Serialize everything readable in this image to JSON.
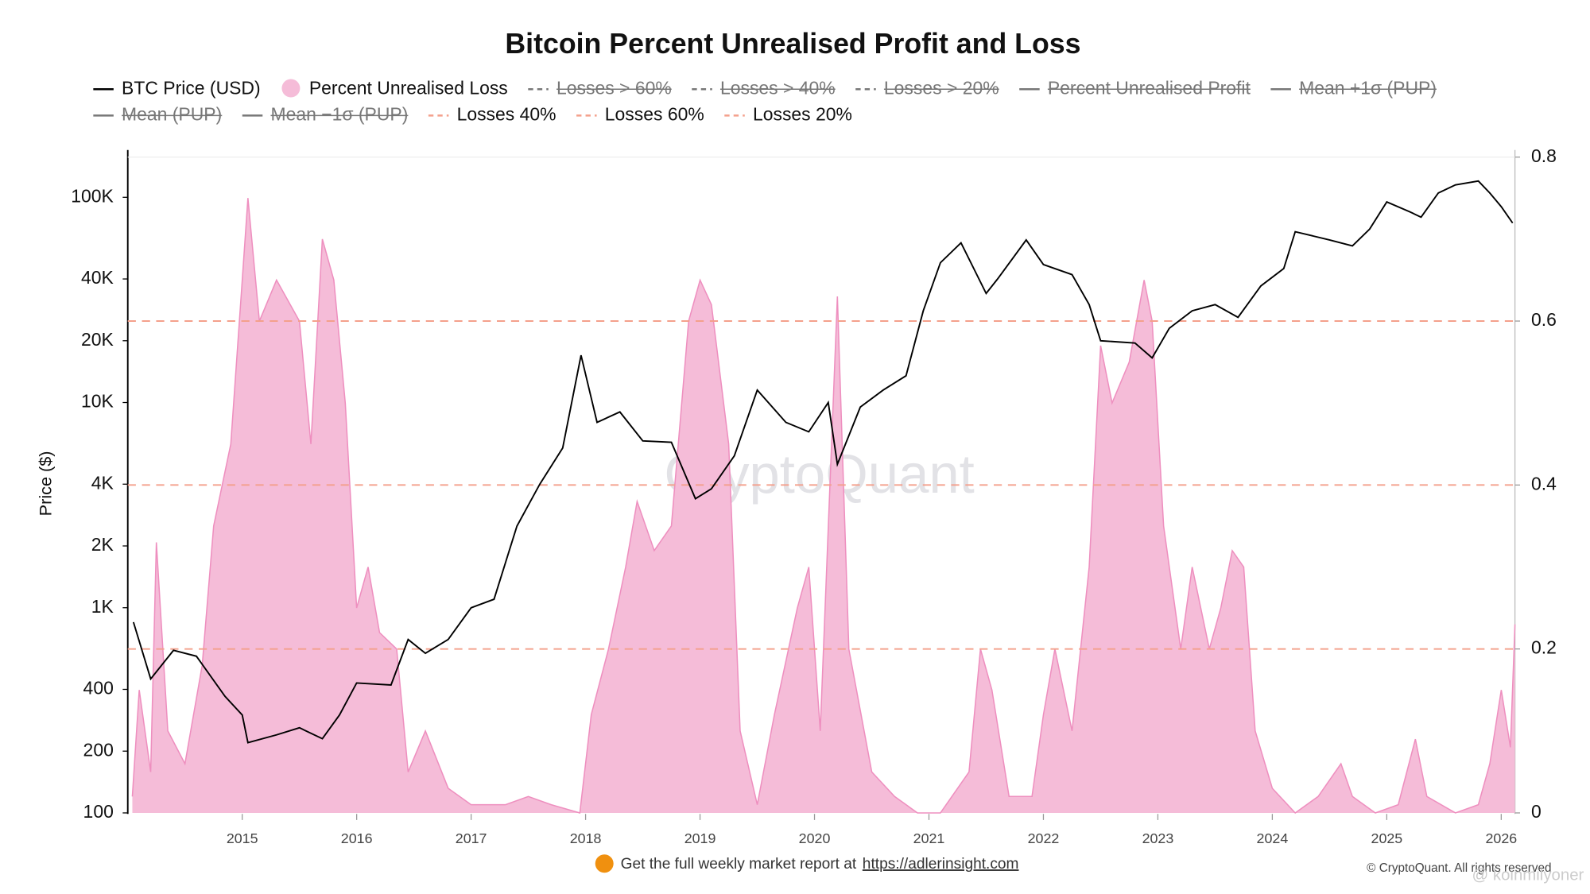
{
  "chart_data": {
    "type": "line",
    "title": "Bitcoin Percent Unrealised Profit and Loss",
    "y_label": "Price ($)",
    "watermark": "CryptoQuant",
    "footer_text": "Get the full weekly market report at",
    "footer_link": "https://adlerinsight.com",
    "copyright": "© CryptoQuant. All rights reserved",
    "credit": "@ koinmilyoner",
    "log_y": true,
    "grid": false,
    "xlim": [
      2014.0,
      2026.12
    ],
    "xticks": [
      2015,
      2016,
      2017,
      2018,
      2019,
      2020,
      2021,
      2022,
      2023,
      2024,
      2025,
      2026
    ],
    "ylim": [
      100,
      157000
    ],
    "yticks": [
      100,
      200,
      400,
      {
        "value": 1000,
        "label": "1K"
      },
      {
        "value": 2000,
        "label": "2K"
      },
      {
        "value": 4000,
        "label": "4K"
      },
      {
        "value": 10000,
        "label": "10K"
      },
      {
        "value": 20000,
        "label": "20K"
      },
      {
        "value": 40000,
        "label": "40K"
      },
      {
        "value": 100000,
        "label": "100K"
      }
    ],
    "y2lim": [
      0,
      0.8
    ],
    "y2ticks": [
      0,
      0.2,
      0.4,
      0.6,
      0.8
    ],
    "series": [
      {
        "name": "BTC Price (USD)",
        "style": "line",
        "color": "#000000",
        "x": [
          2014.05,
          2014.2,
          2014.4,
          2014.6,
          2014.85,
          2015.0,
          2015.05,
          2015.3,
          2015.5,
          2015.7,
          2015.85,
          2016.0,
          2016.3,
          2016.45,
          2016.6,
          2016.8,
          2017.0,
          2017.2,
          2017.4,
          2017.6,
          2017.8,
          2017.96,
          2018.1,
          2018.3,
          2018.5,
          2018.75,
          2018.96,
          2019.1,
          2019.3,
          2019.5,
          2019.75,
          2019.95,
          2020.12,
          2020.2,
          2020.4,
          2020.6,
          2020.8,
          2020.95,
          2021.1,
          2021.28,
          2021.5,
          2021.6,
          2021.85,
          2022.0,
          2022.25,
          2022.4,
          2022.5,
          2022.8,
          2022.95,
          2023.1,
          2023.3,
          2023.5,
          2023.7,
          2023.9,
          2024.1,
          2024.2,
          2024.5,
          2024.7,
          2024.85,
          2025.0,
          2025.2,
          2025.3,
          2025.45,
          2025.6,
          2025.8,
          2025.9,
          2026.0,
          2026.1
        ],
        "values": [
          850,
          450,
          620,
          580,
          370,
          300,
          220,
          240,
          260,
          230,
          300,
          430,
          420,
          700,
          600,
          700,
          1000,
          1100,
          2500,
          4000,
          6000,
          17000,
          8000,
          9000,
          6500,
          6400,
          3400,
          3800,
          5500,
          11500,
          8000,
          7200,
          10000,
          5000,
          9500,
          11500,
          13500,
          28000,
          48000,
          60000,
          34000,
          40000,
          62000,
          47000,
          42000,
          30000,
          20000,
          19500,
          16500,
          23000,
          28000,
          30000,
          26000,
          37000,
          45000,
          68000,
          62000,
          58000,
          70000,
          95000,
          85000,
          80000,
          105000,
          115000,
          120000,
          105000,
          90000,
          75000
        ]
      },
      {
        "name": "Percent Unrealised Loss",
        "style": "area",
        "axis": "y2",
        "color": "#ee8fbf",
        "fill": "#f5bcd8",
        "x": [
          2014.04,
          2014.1,
          2014.2,
          2014.25,
          2014.35,
          2014.5,
          2014.65,
          2014.75,
          2014.9,
          2015.0,
          2015.05,
          2015.15,
          2015.3,
          2015.5,
          2015.6,
          2015.7,
          2015.8,
          2015.9,
          2016.0,
          2016.1,
          2016.2,
          2016.35,
          2016.45,
          2016.6,
          2016.8,
          2017.0,
          2017.3,
          2017.5,
          2017.7,
          2017.95,
          2018.05,
          2018.2,
          2018.35,
          2018.45,
          2018.6,
          2018.75,
          2018.9,
          2019.0,
          2019.1,
          2019.25,
          2019.35,
          2019.5,
          2019.65,
          2019.85,
          2019.95,
          2020.05,
          2020.2,
          2020.3,
          2020.5,
          2020.7,
          2020.9,
          2021.1,
          2021.35,
          2021.45,
          2021.55,
          2021.7,
          2021.9,
          2022.0,
          2022.1,
          2022.25,
          2022.4,
          2022.5,
          2022.6,
          2022.75,
          2022.88,
          2022.95,
          2023.05,
          2023.2,
          2023.3,
          2023.45,
          2023.55,
          2023.65,
          2023.75,
          2023.85,
          2024.0,
          2024.2,
          2024.4,
          2024.6,
          2024.7,
          2024.9,
          2025.1,
          2025.25,
          2025.35,
          2025.6,
          2025.8,
          2025.9,
          2026.0,
          2026.08,
          2026.12
        ],
        "values": [
          0.02,
          0.15,
          0.05,
          0.33,
          0.1,
          0.06,
          0.18,
          0.35,
          0.45,
          0.65,
          0.75,
          0.6,
          0.65,
          0.6,
          0.45,
          0.7,
          0.65,
          0.5,
          0.25,
          0.3,
          0.22,
          0.2,
          0.05,
          0.1,
          0.03,
          0.01,
          0.01,
          0.02,
          0.01,
          0.0,
          0.12,
          0.2,
          0.3,
          0.38,
          0.32,
          0.35,
          0.6,
          0.65,
          0.62,
          0.45,
          0.1,
          0.01,
          0.12,
          0.25,
          0.3,
          0.1,
          0.63,
          0.2,
          0.05,
          0.02,
          0.0,
          0.0,
          0.05,
          0.2,
          0.15,
          0.02,
          0.02,
          0.12,
          0.2,
          0.1,
          0.3,
          0.57,
          0.5,
          0.55,
          0.65,
          0.6,
          0.35,
          0.2,
          0.3,
          0.2,
          0.25,
          0.32,
          0.3,
          0.1,
          0.03,
          0.0,
          0.02,
          0.06,
          0.02,
          0.0,
          0.01,
          0.09,
          0.02,
          0.0,
          0.01,
          0.06,
          0.15,
          0.08,
          0.23
        ]
      },
      {
        "name": "Losses > 60%",
        "style": "dashed",
        "color": "#666666",
        "hidden": true
      },
      {
        "name": "Losses > 40%",
        "style": "dashed",
        "color": "#666666",
        "hidden": true
      },
      {
        "name": "Losses > 20%",
        "style": "dashed",
        "color": "#666666",
        "hidden": true
      },
      {
        "name": "Percent Unrealised Profit",
        "style": "line",
        "color": "#666666",
        "hidden": true
      },
      {
        "name": "Mean +1σ (PUP)",
        "style": "line",
        "color": "#666666",
        "hidden": true
      },
      {
        "name": "Mean (PUP)",
        "style": "line",
        "color": "#666666",
        "hidden": true
      },
      {
        "name": "Mean −1σ (PUP)",
        "style": "line",
        "color": "#666666",
        "hidden": true
      },
      {
        "name": "Losses 40%",
        "style": "hline",
        "axis": "y2",
        "color": "#f4a08c",
        "level": 0.4
      },
      {
        "name": "Losses 60%",
        "style": "hline",
        "axis": "y2",
        "color": "#f4a08c",
        "level": 0.6
      },
      {
        "name": "Losses 20%",
        "style": "hline",
        "axis": "y2",
        "color": "#f4a08c",
        "level": 0.2
      }
    ]
  }
}
